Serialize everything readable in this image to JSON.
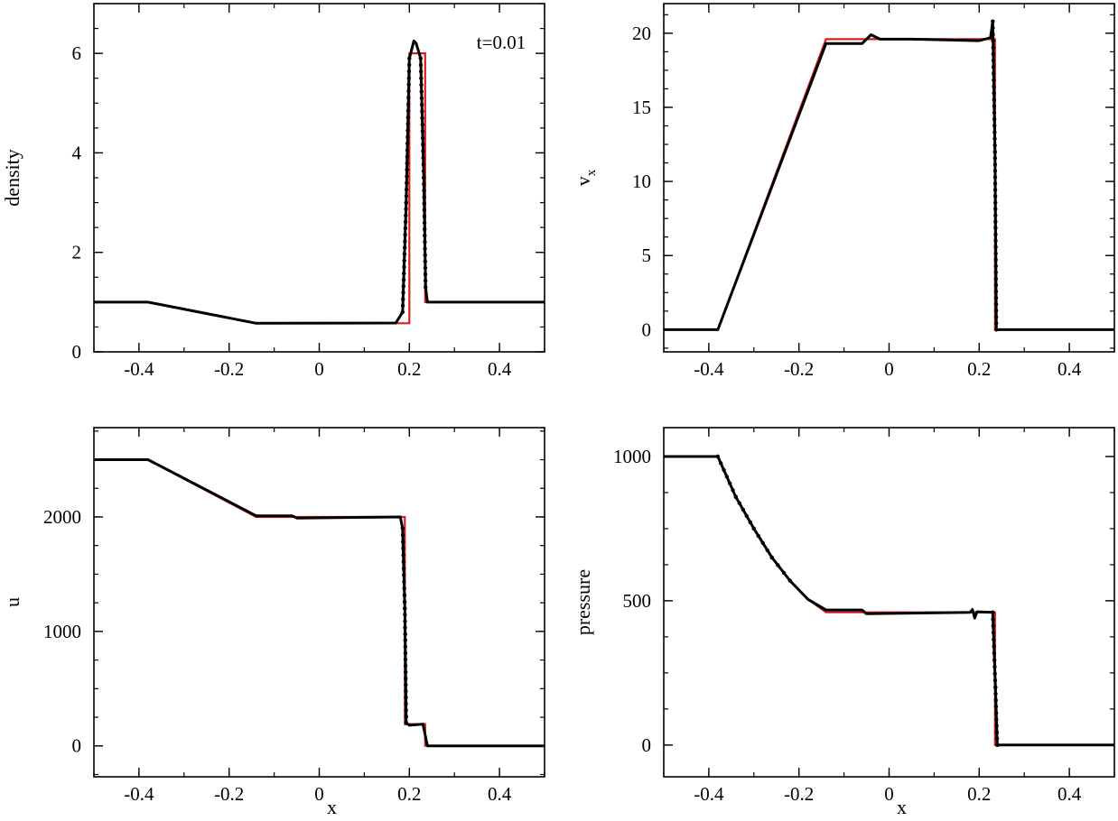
{
  "figure": {
    "annotation": "t=0.01",
    "colors": {
      "simulation": "#000000",
      "exact": "#d42020",
      "axes": "#000000"
    }
  },
  "chart_data": [
    {
      "type": "line",
      "panel": "top-left",
      "xlabel": "",
      "ylabel": "density",
      "xlim": [
        -0.5,
        0.5
      ],
      "ylim": [
        0,
        7
      ],
      "xticks": [
        -0.4,
        -0.2,
        0,
        0.2,
        0.4
      ],
      "xtick_labels": [
        "-0.4",
        "-0.2",
        "0",
        "0.2",
        "0.4"
      ],
      "yticks": [
        0,
        2,
        4,
        6
      ],
      "ytick_labels": [
        "0",
        "2",
        "4",
        "6"
      ],
      "annotation": "t=0.01",
      "series": [
        {
          "role": "exact",
          "color": "#d42020",
          "x": [
            -0.5,
            -0.378,
            -0.14,
            0.19,
            0.19,
            0.2,
            0.2,
            0.235,
            0.235,
            0.5
          ],
          "y": [
            1.0,
            1.0,
            0.575,
            0.575,
            0.575,
            0.575,
            6.0,
            6.0,
            1.0,
            1.0
          ]
        },
        {
          "role": "simulation",
          "color": "#000000",
          "x": [
            -0.5,
            -0.38,
            -0.14,
            0.17,
            0.185,
            0.193,
            0.2,
            0.21,
            0.215,
            0.225,
            0.232,
            0.236,
            0.24,
            0.5
          ],
          "y": [
            1.0,
            1.0,
            0.575,
            0.58,
            0.8,
            3.0,
            5.9,
            6.25,
            6.2,
            5.9,
            3.5,
            1.3,
            1.0,
            1.0
          ]
        }
      ]
    },
    {
      "type": "line",
      "panel": "top-right",
      "xlabel": "",
      "ylabel": "v",
      "ylabel_subscript": "x",
      "xlim": [
        -0.5,
        0.5
      ],
      "ylim": [
        -1.5,
        22
      ],
      "xticks": [
        -0.4,
        -0.2,
        0,
        0.2,
        0.4
      ],
      "xtick_labels": [
        "-0.4",
        "-0.2",
        "0",
        "0.2",
        "0.4"
      ],
      "yticks": [
        0,
        5,
        10,
        15,
        20
      ],
      "ytick_labels": [
        "0",
        "5",
        "10",
        "15",
        "20"
      ],
      "series": [
        {
          "role": "exact",
          "color": "#d42020",
          "x": [
            -0.5,
            -0.38,
            -0.14,
            0.235,
            0.235,
            0.5
          ],
          "y": [
            0,
            0,
            19.6,
            19.6,
            0,
            0
          ]
        },
        {
          "role": "simulation",
          "color": "#000000",
          "x": [
            -0.5,
            -0.38,
            -0.14,
            -0.06,
            -0.04,
            -0.02,
            0.05,
            0.2,
            0.225,
            0.23,
            0.235,
            0.238,
            0.5
          ],
          "y": [
            0,
            0,
            19.3,
            19.3,
            19.9,
            19.6,
            19.6,
            19.5,
            19.7,
            20.8,
            12.0,
            0,
            0
          ]
        }
      ]
    },
    {
      "type": "line",
      "panel": "bottom-left",
      "xlabel": "x",
      "ylabel": "u",
      "xlim": [
        -0.5,
        0.5
      ],
      "ylim": [
        -270,
        2780
      ],
      "xticks": [
        -0.4,
        -0.2,
        0,
        0.2,
        0.4
      ],
      "xtick_labels": [
        "-0.4",
        "-0.2",
        "0",
        "0.2",
        "0.4"
      ],
      "yticks": [
        0,
        1000,
        2000
      ],
      "ytick_labels": [
        "0",
        "1000",
        "2000"
      ],
      "series": [
        {
          "role": "exact",
          "color": "#d42020",
          "x": [
            -0.5,
            -0.38,
            -0.14,
            0.19,
            0.19,
            0.235,
            0.235,
            0.5
          ],
          "y": [
            2500,
            2500,
            2000,
            2000,
            190,
            190,
            0,
            0
          ]
        },
        {
          "role": "simulation",
          "color": "#000000",
          "x": [
            -0.5,
            -0.38,
            -0.14,
            -0.06,
            -0.05,
            0.18,
            0.185,
            0.19,
            0.193,
            0.2,
            0.23,
            0.24,
            0.5
          ],
          "y": [
            2500,
            2500,
            2010,
            2010,
            1990,
            2000,
            1900,
            1200,
            200,
            180,
            190,
            0,
            0
          ]
        }
      ]
    },
    {
      "type": "line",
      "panel": "bottom-right",
      "xlabel": "x",
      "ylabel": "pressure",
      "xlim": [
        -0.5,
        0.5
      ],
      "ylim": [
        -110,
        1100
      ],
      "xticks": [
        -0.4,
        -0.2,
        0,
        0.2,
        0.4
      ],
      "xtick_labels": [
        "-0.4",
        "-0.2",
        "0",
        "0.2",
        "0.4"
      ],
      "yticks": [
        0,
        500,
        1000
      ],
      "ytick_labels": [
        "0",
        "500",
        "1000"
      ],
      "series": [
        {
          "role": "exact",
          "color": "#d42020",
          "x": [
            -0.5,
            -0.38,
            -0.34,
            -0.3,
            -0.26,
            -0.22,
            -0.18,
            -0.14,
            0.235,
            0.235,
            0.5
          ],
          "y": [
            1000,
            1000,
            860,
            750,
            650,
            570,
            505,
            460,
            460,
            0,
            0
          ]
        },
        {
          "role": "simulation",
          "color": "#000000",
          "x": [
            -0.5,
            -0.38,
            -0.34,
            -0.3,
            -0.26,
            -0.22,
            -0.18,
            -0.14,
            -0.06,
            -0.05,
            0.18,
            0.185,
            0.19,
            0.195,
            0.23,
            0.236,
            0.24,
            0.5
          ],
          "y": [
            1000,
            1000,
            860,
            750,
            650,
            570,
            505,
            468,
            468,
            455,
            460,
            470,
            440,
            462,
            460,
            200,
            0,
            0
          ]
        }
      ]
    }
  ]
}
